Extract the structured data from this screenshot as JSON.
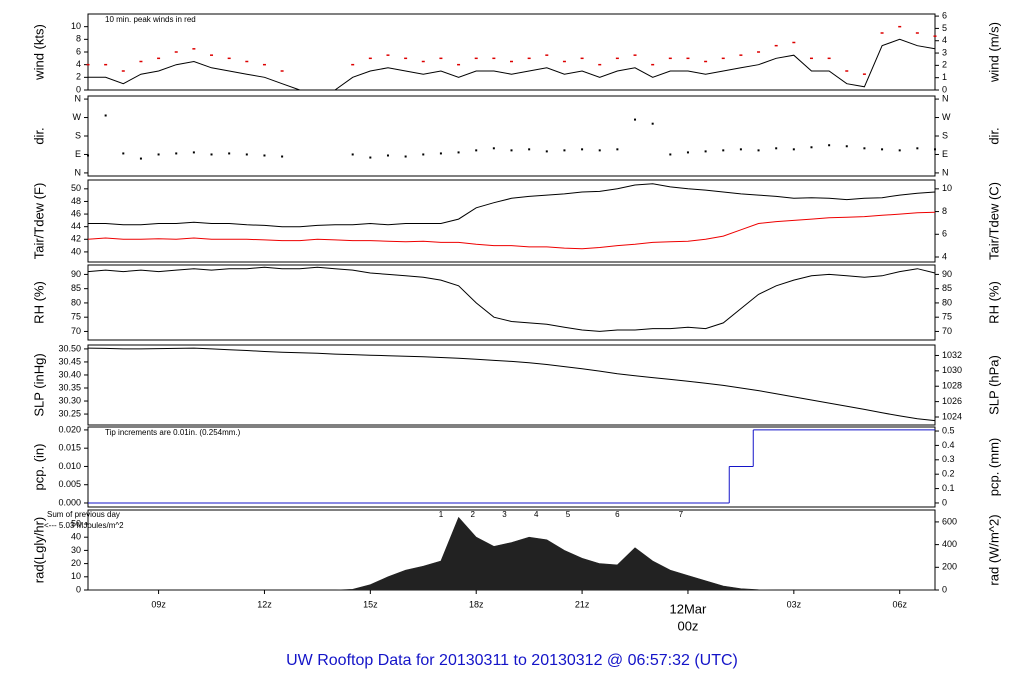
{
  "title": "UW Rooftop Data for 20130311  to  20130312 @ 06:57:32  (UTC)",
  "chart_data": [
    {
      "type": "line",
      "ylabel": "wind (kts)",
      "y2label": "wind (m/s)",
      "note": "10 min. peak winds in red",
      "note_color": "#dd0000",
      "x": [
        7,
        7.5,
        8,
        8.5,
        9,
        9.5,
        10,
        10.5,
        11,
        11.5,
        12,
        12.5,
        13,
        13.5,
        14,
        14.5,
        15,
        15.5,
        16,
        16.5,
        17,
        17.5,
        18,
        18.5,
        19,
        19.5,
        20,
        20.5,
        21,
        21.5,
        22,
        22.5,
        23,
        23.5,
        24,
        24.5,
        25,
        25.5,
        26,
        26.5,
        27,
        27.5,
        28,
        28.5,
        29,
        29.5,
        30,
        30.5,
        31
      ],
      "xlim": [
        7,
        31
      ],
      "ylim": [
        0,
        12
      ],
      "yticks": [
        0,
        2,
        4,
        6,
        8,
        10
      ],
      "y2lim": [
        0,
        6.17
      ],
      "y2ticks": [
        0,
        1,
        2,
        3,
        4,
        5,
        6
      ],
      "series": [
        {
          "color": "#000000",
          "values": [
            2,
            2,
            1,
            2.5,
            3,
            4,
            4.5,
            3.5,
            3,
            2.5,
            2,
            1,
            0,
            0,
            0,
            2,
            3,
            3.5,
            3,
            2.5,
            3,
            2,
            3,
            3,
            2.5,
            3,
            3.5,
            2.5,
            3,
            2,
            3,
            3.5,
            2,
            3,
            3,
            2.5,
            3,
            3.5,
            4,
            5,
            5.5,
            3,
            3,
            1,
            0.5,
            7,
            8,
            7,
            6.5
          ]
        },
        {
          "color": "#dd0000",
          "mark": "dash",
          "values": [
            4,
            4,
            3,
            4.5,
            5,
            6,
            6.5,
            5.5,
            5,
            4.5,
            4,
            3,
            null,
            null,
            null,
            4,
            5,
            5.5,
            5,
            4.5,
            5,
            4,
            5,
            5,
            4.5,
            5,
            5.5,
            4.5,
            5,
            4,
            5,
            5.5,
            4,
            5,
            5,
            4.5,
            5,
            5.5,
            6,
            7,
            7.5,
            5,
            5,
            3,
            2.5,
            9,
            10,
            9,
            8.5
          ]
        }
      ]
    },
    {
      "type": "scatter",
      "ylabel": "dir.",
      "y2label": "dir.",
      "x": [
        7,
        7.5,
        8,
        8.5,
        9,
        9.5,
        10,
        10.5,
        11,
        11.5,
        12,
        12.5,
        13,
        13.5,
        14,
        14.5,
        15,
        15.5,
        16,
        16.5,
        17,
        17.5,
        18,
        18.5,
        19,
        19.5,
        20,
        20.5,
        21,
        21.5,
        22,
        22.5,
        23,
        23.5,
        24,
        24.5,
        25,
        25.5,
        26,
        26.5,
        27,
        27.5,
        28,
        28.5,
        29,
        29.5,
        30,
        30.5,
        31
      ],
      "xlim": [
        7,
        31
      ],
      "ylim": [
        -15,
        375
      ],
      "yticks": [
        {
          "value": 0,
          "label": "N"
        },
        {
          "value": 90,
          "label": "E"
        },
        {
          "value": 180,
          "label": "S"
        },
        {
          "value": 270,
          "label": "W"
        },
        {
          "value": 360,
          "label": "N"
        }
      ],
      "y2lim": [
        -15,
        375
      ],
      "y2ticks": [
        {
          "value": 0,
          "label": "N"
        },
        {
          "value": 90,
          "label": "E"
        },
        {
          "value": 180,
          "label": "S"
        },
        {
          "value": 270,
          "label": "W"
        },
        {
          "value": 360,
          "label": "N"
        }
      ],
      "series": [
        {
          "color": "#000000",
          "values": [
            85,
            280,
            95,
            70,
            90,
            95,
            100,
            90,
            95,
            90,
            85,
            80,
            null,
            null,
            null,
            90,
            75,
            85,
            80,
            90,
            95,
            100,
            110,
            120,
            110,
            115,
            105,
            110,
            115,
            110,
            115,
            260,
            240,
            90,
            100,
            105,
            110,
            115,
            110,
            120,
            115,
            125,
            135,
            130,
            120,
            115,
            110,
            120,
            115
          ]
        }
      ]
    },
    {
      "type": "line",
      "ylabel": "Tair/Tdew (F)",
      "y2label": "Tair/Tdew (C)",
      "x": [
        7,
        7.5,
        8,
        8.5,
        9,
        9.5,
        10,
        10.5,
        11,
        11.5,
        12,
        12.5,
        13,
        13.5,
        14,
        14.5,
        15,
        15.5,
        16,
        16.5,
        17,
        17.5,
        18,
        18.5,
        19,
        19.5,
        20,
        20.5,
        21,
        21.5,
        22,
        22.5,
        23,
        23.5,
        24,
        24.5,
        25,
        25.5,
        26,
        26.5,
        27,
        27.5,
        28,
        28.5,
        29,
        29.5,
        30,
        30.5,
        31
      ],
      "xlim": [
        7,
        31
      ],
      "ylim": [
        38.4,
        51.4
      ],
      "yticks": [
        40,
        42,
        44,
        46,
        48,
        50
      ],
      "y2lim": [
        3.56,
        10.78
      ],
      "y2ticks": [
        4,
        6,
        8,
        10
      ],
      "series": [
        {
          "color": "#000000",
          "values": [
            44.5,
            44.5,
            44.3,
            44.3,
            44.5,
            44.5,
            44.7,
            44.5,
            44.5,
            44.3,
            44.2,
            44,
            44,
            44.2,
            44.3,
            44.3,
            44.5,
            44.3,
            44.5,
            44.5,
            44.5,
            45.2,
            47,
            47.8,
            48.5,
            48.8,
            49,
            49.2,
            49.5,
            49.6,
            50,
            50.6,
            50.8,
            50.3,
            50,
            49.8,
            49.5,
            49.2,
            49,
            48.8,
            48.5,
            48.6,
            48.5,
            48.3,
            48.5,
            48.6,
            49,
            49.3,
            49.5
          ]
        },
        {
          "color": "#ee0000",
          "values": [
            42,
            42.2,
            42,
            42,
            42.1,
            42,
            42.2,
            42,
            42,
            42,
            41.9,
            41.8,
            41.8,
            42,
            41.9,
            41.8,
            41.8,
            41.7,
            41.6,
            41.7,
            41.5,
            41.5,
            41.2,
            41,
            41,
            40.8,
            40.8,
            40.6,
            40.5,
            40.7,
            41,
            41.2,
            41.5,
            41.6,
            41.7,
            42,
            42.5,
            43.5,
            44.5,
            44.8,
            45,
            45.2,
            45.4,
            45.5,
            45.6,
            45.8,
            46,
            46.2,
            46.3
          ]
        }
      ]
    },
    {
      "type": "line",
      "ylabel": "RH (%)",
      "y2label": "RH (%)",
      "x": [
        7,
        7.5,
        8,
        8.5,
        9,
        9.5,
        10,
        10.5,
        11,
        11.5,
        12,
        12.5,
        13,
        13.5,
        14,
        14.5,
        15,
        15.5,
        16,
        16.5,
        17,
        17.5,
        18,
        18.5,
        19,
        19.5,
        20,
        20.5,
        21,
        21.5,
        22,
        22.5,
        23,
        23.5,
        24,
        24.5,
        25,
        25.5,
        26,
        26.5,
        27,
        27.5,
        28,
        28.5,
        29,
        29.5,
        30,
        30.5,
        31
      ],
      "xlim": [
        7,
        31
      ],
      "ylim": [
        67,
        93.3
      ],
      "yticks": [
        70,
        75,
        80,
        85,
        90
      ],
      "y2lim": [
        67,
        93.3
      ],
      "y2ticks": [
        70,
        75,
        80,
        85,
        90
      ],
      "series": [
        {
          "color": "#000000",
          "values": [
            91,
            91.5,
            91,
            91.5,
            91,
            91.5,
            92,
            91.5,
            92,
            92,
            92.5,
            92,
            92,
            92.5,
            92,
            91.5,
            90.5,
            90,
            89.5,
            89,
            88,
            86,
            80,
            75,
            73.5,
            73,
            72.5,
            71.5,
            70.5,
            70,
            70.5,
            70.5,
            71,
            71,
            71.5,
            71,
            73,
            78,
            83,
            86,
            88,
            89.5,
            90,
            89.5,
            89,
            89.5,
            91,
            92,
            90.5
          ]
        }
      ]
    },
    {
      "type": "line",
      "ylabel": "SLP (inHg)",
      "y2label": "SLP (hPa)",
      "x": [
        7,
        7.5,
        8,
        8.5,
        9,
        9.5,
        10,
        10.5,
        11,
        11.5,
        12,
        12.5,
        13,
        13.5,
        14,
        14.5,
        15,
        15.5,
        16,
        16.5,
        17,
        17.5,
        18,
        18.5,
        19,
        19.5,
        20,
        20.5,
        21,
        21.5,
        22,
        22.5,
        23,
        23.5,
        24,
        24.5,
        25,
        25.5,
        26,
        26.5,
        27,
        27.5,
        28,
        28.5,
        29,
        29.5,
        30,
        30.5,
        31
      ],
      "xlim": [
        7,
        31
      ],
      "ylim": [
        30.208,
        30.515
      ],
      "yticks": [
        30.25,
        {
          "value": 30.3,
          "label": "30.30"
        },
        30.35,
        {
          "value": 30.4,
          "label": "30.40"
        },
        30.45,
        {
          "value": 30.5,
          "label": "30.50"
        }
      ],
      "y2lim": [
        1022.96,
        1033.36
      ],
      "y2ticks": [
        1024,
        1026,
        1028,
        1030,
        1032
      ],
      "series": [
        {
          "color": "#000000",
          "values": [
            30.503,
            30.502,
            30.5,
            30.5,
            30.501,
            30.502,
            30.503,
            30.5,
            30.497,
            30.494,
            30.49,
            30.487,
            30.485,
            30.483,
            30.48,
            30.478,
            30.476,
            30.474,
            30.472,
            30.47,
            30.467,
            30.464,
            30.46,
            30.456,
            30.452,
            30.447,
            30.44,
            30.432,
            30.424,
            30.415,
            30.405,
            30.397,
            30.39,
            30.383,
            30.376,
            30.368,
            30.36,
            30.35,
            30.34,
            30.328,
            30.316,
            30.304,
            30.292,
            30.28,
            30.268,
            30.255,
            30.243,
            30.232,
            30.225
          ]
        }
      ]
    },
    {
      "type": "step",
      "ylabel": "pcp. (in)",
      "y2label": "pcp. (mm)",
      "note": "Tip increments are 0.01in. (0.254mm.)",
      "note_color": "#1414c8",
      "x": [
        7,
        25.17,
        25.85
      ],
      "xlim": [
        7,
        31
      ],
      "ylim": [
        -0.0011,
        0.0208
      ],
      "yticks": [
        {
          "value": 0,
          "label": "0.000"
        },
        {
          "value": 0.005,
          "label": "0.005"
        },
        {
          "value": 0.01,
          "label": "0.010"
        },
        {
          "value": 0.015,
          "label": "0.015"
        },
        {
          "value": 0.02,
          "label": "0.020"
        }
      ],
      "y2lim": [
        -0.028,
        0.528
      ],
      "y2ticks": [
        0,
        0.1,
        0.2,
        0.3,
        0.4,
        0.5
      ],
      "series": [
        {
          "color": "#1414c8",
          "values": [
            0,
            0.01,
            0.02
          ]
        }
      ]
    },
    {
      "type": "area",
      "ylabel": "rad(Lgly/hr)",
      "y2label": "rad (W/m^2)",
      "side_notes": [
        "Sum of previous day",
        "<--- 5.03 MJoules/m^2"
      ],
      "side_note_color": "#a020c0",
      "markers": {
        "x": [
          17.0,
          17.9,
          18.8,
          19.7,
          20.6,
          22.0,
          23.8
        ],
        "labels": [
          "1",
          "2",
          "3",
          "4",
          "5",
          "6",
          "7"
        ],
        "color": "#a020c0"
      },
      "x": [
        7,
        7.5,
        8,
        8.5,
        9,
        9.5,
        10,
        10.5,
        11,
        11.5,
        12,
        12.5,
        13,
        13.5,
        14,
        14.5,
        15,
        15.5,
        16,
        16.5,
        17,
        17.5,
        18,
        18.5,
        19,
        19.5,
        20,
        20.5,
        21,
        21.5,
        22,
        22.5,
        23,
        23.5,
        24,
        24.5,
        25,
        25.5,
        26,
        26.5,
        27,
        27.5,
        28,
        28.5,
        29,
        29.5,
        30,
        30.5,
        31
      ],
      "xlim": [
        7,
        31
      ],
      "ylim": [
        0,
        60.6
      ],
      "yticks": [
        0,
        10,
        20,
        30,
        40,
        50
      ],
      "y2lim": [
        0,
        705
      ],
      "y2ticks": [
        0,
        200,
        400,
        600
      ],
      "xticks": [
        {
          "value": 9,
          "label": "09z"
        },
        {
          "value": 12,
          "label": "12z"
        },
        {
          "value": 15,
          "label": "15z"
        },
        {
          "value": 18,
          "label": "18z"
        },
        {
          "value": 21,
          "label": "21z"
        },
        {
          "value": 24,
          "label": "00z"
        },
        {
          "value": 27,
          "label": "03z"
        },
        {
          "value": 30,
          "label": "06z"
        }
      ],
      "date_marker": {
        "value": 24,
        "label": "12Mar",
        "color": "#dd0000"
      },
      "series": [
        {
          "color": "#222222",
          "values": [
            0,
            0,
            0,
            0,
            0,
            0,
            0,
            0,
            0,
            0,
            0,
            0,
            0,
            0,
            0,
            0.5,
            4,
            10,
            15,
            18,
            22,
            55,
            40,
            33,
            36,
            40,
            38,
            30,
            24,
            20,
            19,
            32,
            22,
            15,
            11,
            7,
            3,
            1,
            0.2,
            0,
            0,
            0,
            0,
            0,
            0,
            0,
            0,
            0,
            0
          ]
        }
      ]
    }
  ]
}
